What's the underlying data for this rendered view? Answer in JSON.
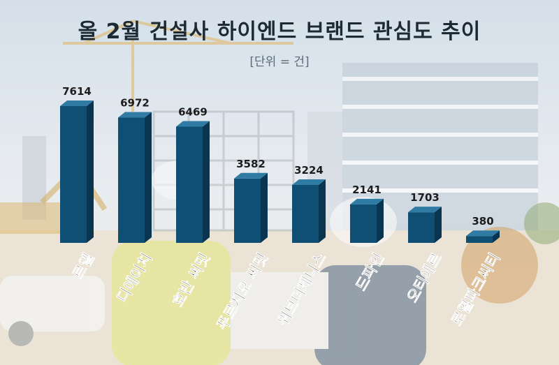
{
  "chart_data": {
    "type": "bar",
    "title": "올 2월 건설사 하이엔드 브랜드 관심도 추이",
    "unit_label": "[단위 = 건]",
    "categories": [
      "르엘",
      "디에이치",
      "호반 써밋",
      "푸르지오 써밋",
      "위브더제니스",
      "드파인",
      "오티에르",
      "로열파크씨티"
    ],
    "values": [
      7614,
      6972,
      6469,
      3582,
      3224,
      2141,
      1703,
      380
    ],
    "value_labels": [
      "7614",
      "6972",
      "6469",
      "3582",
      "3224",
      "2141",
      "1703",
      "380"
    ],
    "ylim": [
      0,
      7614
    ],
    "grid": false,
    "legend": "none",
    "bar_color": "#0f4f73",
    "bar_top_color": "#2f7ba3",
    "bar_side_color": "#0a3550"
  }
}
